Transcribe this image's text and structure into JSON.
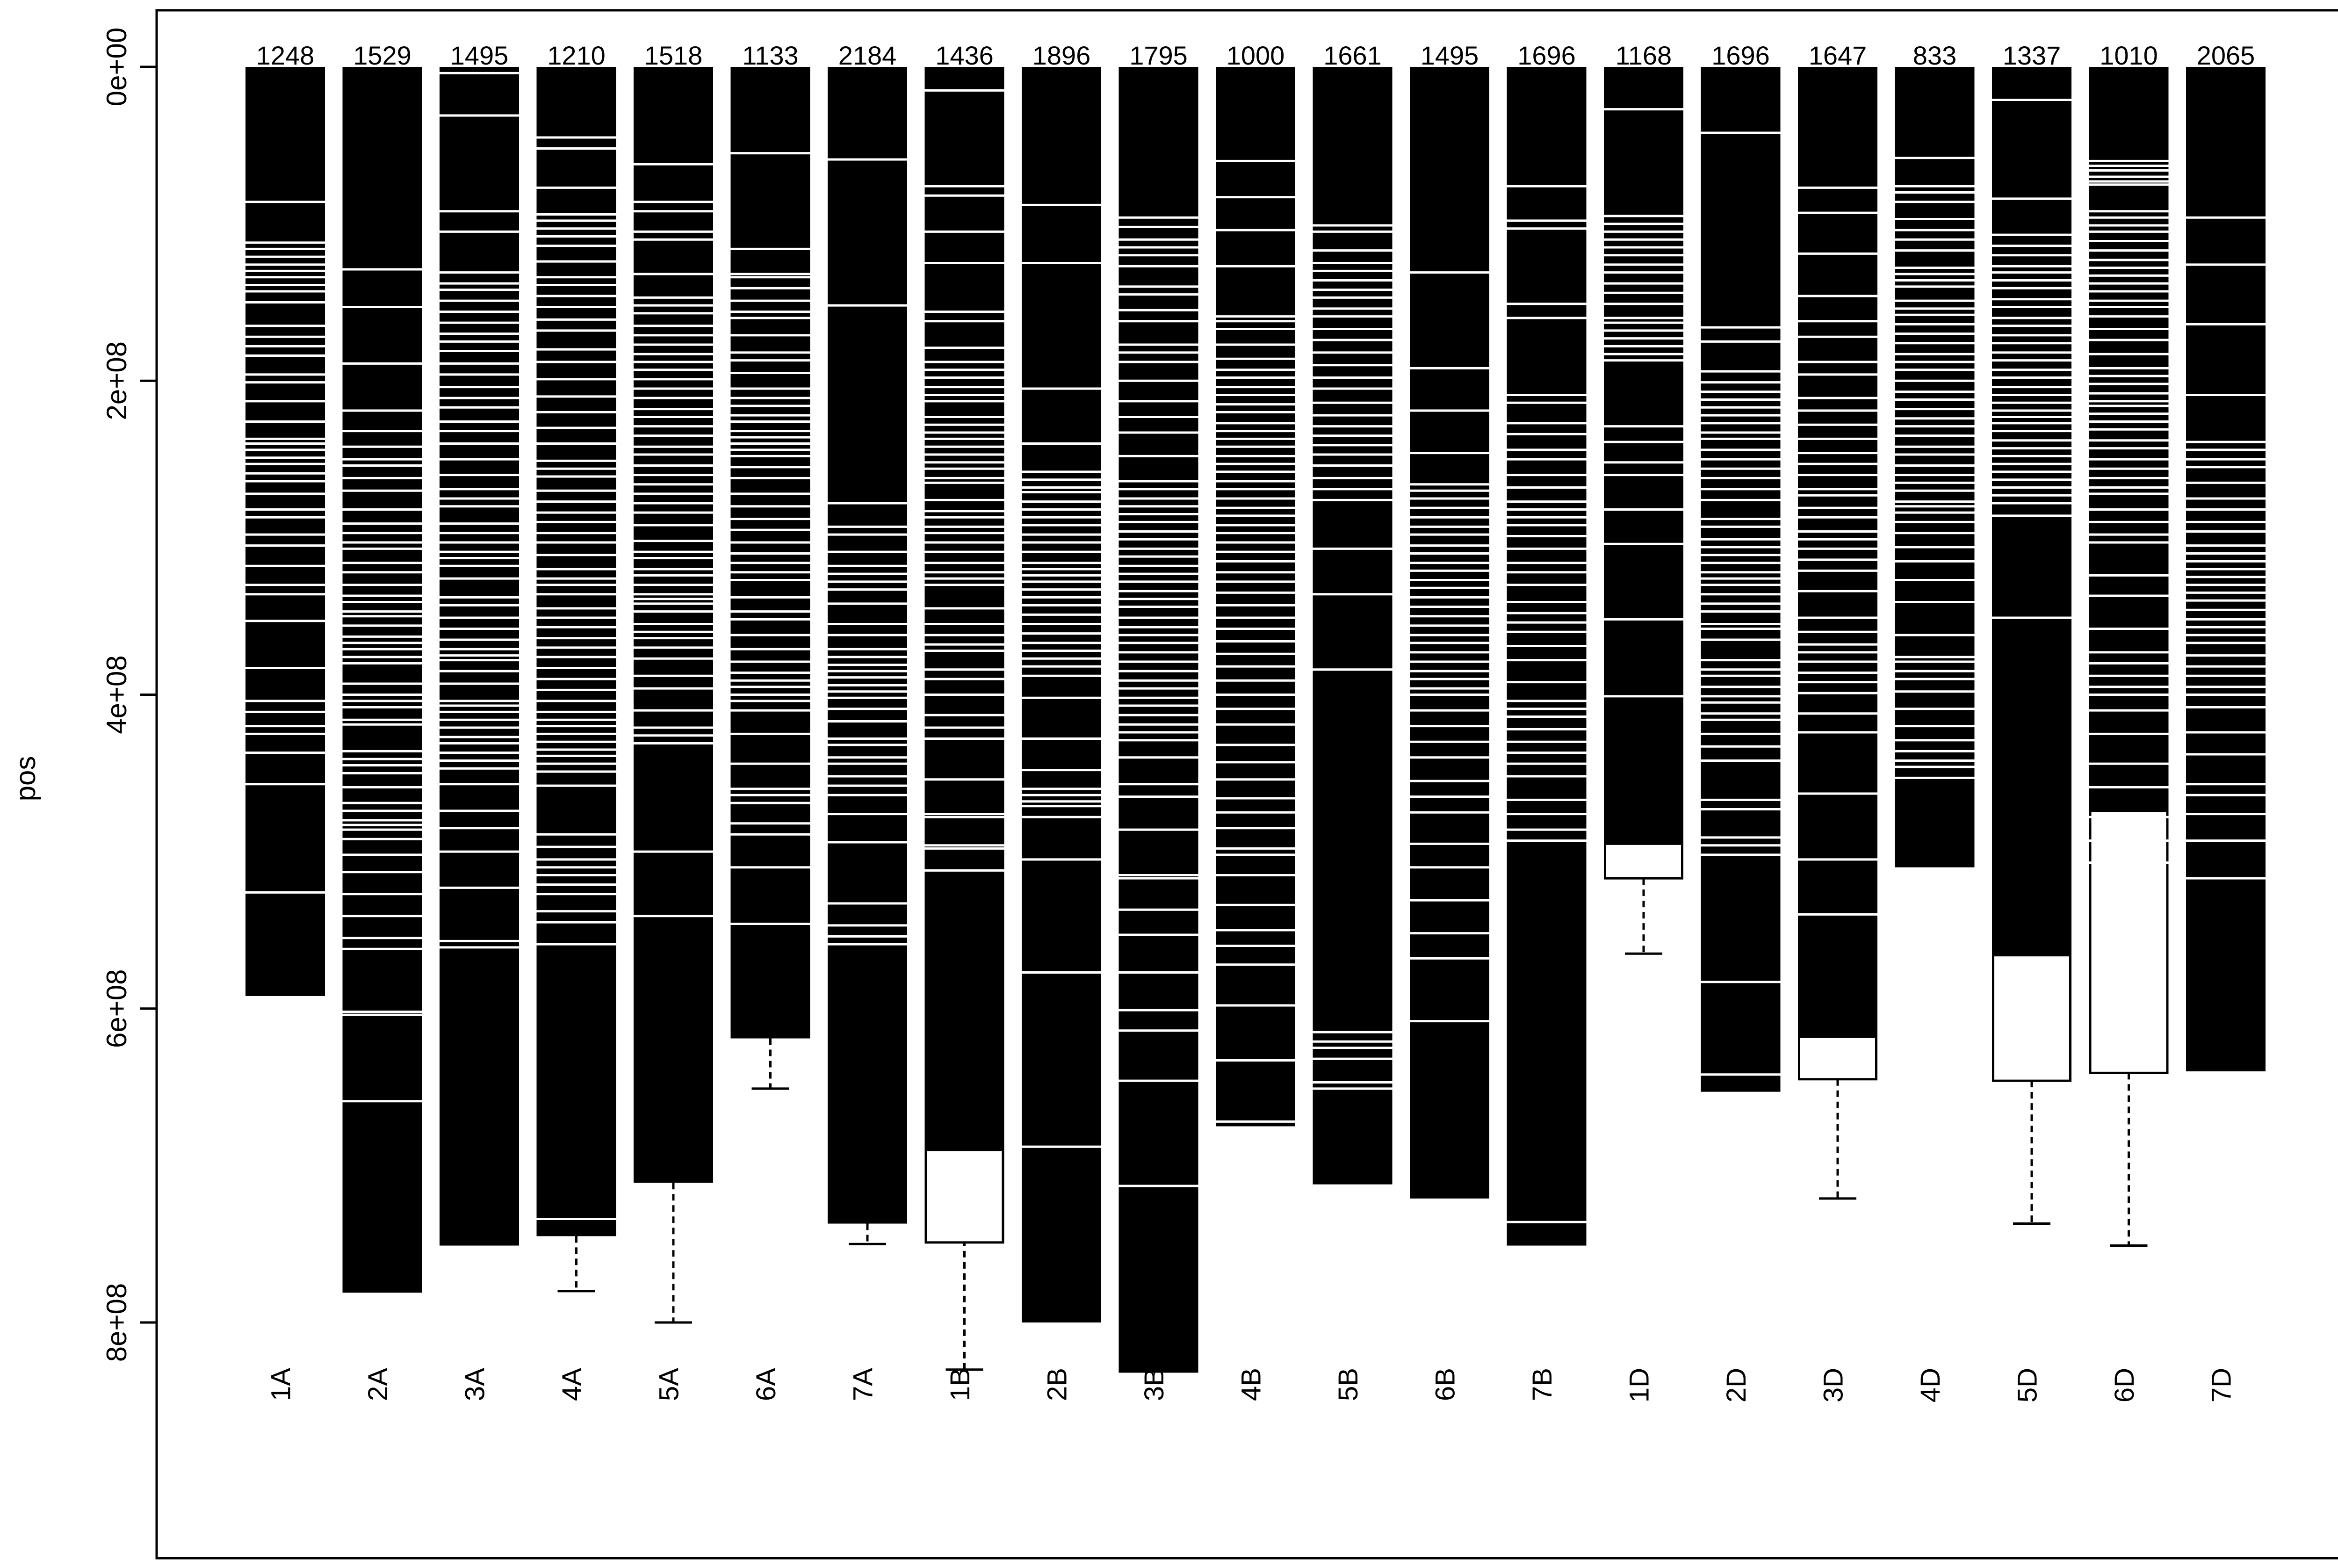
{
  "chart_data": {
    "type": "boxplot",
    "ylabel": "pos",
    "y_inverted": true,
    "ylim": [
      0,
      800000000
    ],
    "yticks": [
      {
        "value": 0,
        "label": "0e+00"
      },
      {
        "value": 200000000,
        "label": "2e+08"
      },
      {
        "value": 400000000,
        "label": "4e+08"
      },
      {
        "value": 600000000,
        "label": "6e+08"
      },
      {
        "value": 800000000,
        "label": "8e+08"
      }
    ],
    "colors": {
      "box_fill": "#000000",
      "marker": "#ffffff",
      "line": "#000000",
      "background": "#ffffff"
    },
    "categories": [
      {
        "label": "1A",
        "count": "1248",
        "box_end": 592000000,
        "whisker_end": 592000000,
        "white_tail": null,
        "markers": [
          86,
          112,
          116,
          121,
          126,
          130,
          134,
          139,
          143,
          150,
          165,
          172,
          178,
          184,
          196,
          201,
          213,
          226,
          237,
          240,
          244,
          249,
          253,
          259,
          264,
          272,
          282,
          287,
          298,
          305,
          318,
          330,
          336,
          353,
          383,
          404,
          411,
          420,
          425,
          437,
          457,
          526
        ]
      },
      {
        "label": "2A",
        "count": "1529",
        "box_end": 781000000,
        "whisker_end": 781000000,
        "white_tail": null,
        "markers": [
          129,
          153,
          189,
          219,
          232,
          242,
          250,
          254,
          262,
          270,
          282,
          291,
          297,
          303,
          307,
          316,
          322,
          330,
          337,
          341,
          347,
          350,
          356,
          363,
          367,
          371,
          376,
          380,
          393,
          400,
          404,
          408,
          416,
          419,
          436,
          441,
          445,
          450,
          459,
          469,
          474,
          480,
          483,
          486,
          492,
          502,
          513,
          527,
          541,
          555,
          562,
          602,
          604,
          659
        ]
      },
      {
        "label": "3A",
        "count": "1495",
        "box_end": 751000000,
        "whisker_end": 751000000,
        "white_tail": null,
        "markers": [
          4,
          31,
          92,
          105,
          131,
          138,
          142,
          149,
          156,
          163,
          170,
          175,
          181,
          189,
          196,
          204,
          211,
          217,
          226,
          232,
          240,
          250,
          260,
          269,
          275,
          280,
          291,
          297,
          303,
          309,
          313,
          318,
          326,
          338,
          343,
          351,
          358,
          365,
          371,
          375,
          378,
          385,
          393,
          404,
          407,
          411,
          416,
          421,
          427,
          431,
          437,
          442,
          447,
          457,
          474,
          485,
          500,
          523,
          557,
          561
        ]
      },
      {
        "label": "4A",
        "count": "1210",
        "box_end": 745000000,
        "whisker_end": 780000000,
        "white_tail": null,
        "markers": [
          45,
          52,
          77,
          94,
          98,
          103,
          108,
          114,
          124,
          134,
          139,
          146,
          153,
          161,
          168,
          180,
          188,
          199,
          210,
          220,
          230,
          240,
          251,
          256,
          261,
          270,
          277,
          284,
          290,
          297,
          303,
          311,
          320,
          326,
          330,
          336,
          345,
          351,
          357,
          364,
          370,
          376,
          383,
          390,
          397,
          404,
          411,
          416,
          420,
          425,
          430,
          435,
          439,
          444,
          449,
          458,
          489,
          497,
          505,
          510,
          515,
          521,
          527,
          538,
          545,
          559,
          734
        ]
      },
      {
        "label": "5A",
        "count": "1518",
        "box_end": 711000000,
        "whisker_end": 800000000,
        "white_tail": null,
        "markers": [
          62,
          86,
          92,
          105,
          110,
          132,
          147,
          152,
          157,
          165,
          171,
          177,
          183,
          188,
          193,
          199,
          205,
          211,
          218,
          223,
          229,
          235,
          242,
          247,
          254,
          260,
          266,
          272,
          278,
          284,
          292,
          302,
          309,
          313,
          320,
          324,
          330,
          336,
          339,
          342,
          347,
          355,
          360,
          364,
          370,
          377,
          388,
          396,
          410,
          421,
          426,
          431,
          500,
          541
        ]
      },
      {
        "label": "6A",
        "count": "1133",
        "box_end": 619000000,
        "whisker_end": 651000000,
        "white_tail": null,
        "markers": [
          55,
          116,
          132,
          134,
          141,
          149,
          156,
          160,
          171,
          182,
          187,
          195,
          205,
          211,
          216,
          222,
          226,
          232,
          236,
          240,
          244,
          248,
          255,
          262,
          272,
          280,
          288,
          295,
          303,
          310,
          316,
          322,
          327,
          338,
          347,
          352,
          362,
          371,
          379,
          386,
          391,
          395,
          400,
          404,
          410,
          425,
          444,
          460,
          464,
          469,
          482,
          489,
          510,
          546
        ]
      },
      {
        "label": "7A",
        "count": "2184",
        "box_end": 737000000,
        "whisker_end": 750000000,
        "white_tail": null,
        "markers": [
          59,
          152,
          278,
          293,
          298,
          309,
          318,
          323,
          328,
          333,
          342,
          355,
          362,
          371,
          376,
          381,
          385,
          389,
          394,
          398,
          402,
          409,
          417,
          428,
          432,
          440,
          444,
          452,
          458,
          464,
          476,
          494,
          533,
          547,
          554,
          559
        ]
      },
      {
        "label": "1B",
        "count": "1436",
        "box_end": 690000000,
        "whisker_end": 830000000,
        "white_tail": [
          690000000,
          749000000
        ],
        "markers": [
          15,
          76,
          82,
          105,
          125,
          156,
          162,
          179,
          188,
          193,
          198,
          204,
          209,
          213,
          223,
          228,
          233,
          237,
          242,
          247,
          252,
          256,
          262,
          265,
          276,
          283,
          287,
          293,
          297,
          303,
          309,
          316,
          322,
          326,
          330,
          345,
          355,
          362,
          368,
          372,
          384,
          390,
          400,
          413,
          421,
          428,
          454,
          476,
          478,
          496,
          498,
          512
        ]
      },
      {
        "label": "2B",
        "count": "1896",
        "box_end": 800000000,
        "whisker_end": 800000000,
        "white_tail": null,
        "markers": [
          88,
          125,
          205,
          240,
          258,
          263,
          268,
          271,
          277,
          282,
          287,
          292,
          298,
          303,
          309,
          316,
          320,
          324,
          328,
          333,
          338,
          343,
          349,
          355,
          361,
          367,
          372,
          377,
          382,
          388,
          402,
          428,
          448,
          460,
          464,
          468,
          471,
          478,
          505,
          577,
          688
        ]
      },
      {
        "label": "3B",
        "count": "1795",
        "box_end": 832000000,
        "whisker_end": 832000000,
        "white_tail": null,
        "markers": [
          96,
          102,
          110,
          115,
          120,
          127,
          140,
          145,
          155,
          162,
          177,
          182,
          188,
          200,
          213,
          223,
          233,
          248,
          264,
          269,
          275,
          280,
          285,
          290,
          296,
          301,
          307,
          312,
          318,
          323,
          328,
          334,
          339,
          344,
          351,
          357,
          362,
          367,
          373,
          379,
          385,
          391,
          396,
          402,
          407,
          413,
          419,
          424,
          429,
          440,
          457,
          465,
          486,
          515,
          517,
          537,
          553,
          577,
          601,
          614,
          646,
          713
        ]
      },
      {
        "label": "4B",
        "count": "1000",
        "box_end": 675000000,
        "whisker_end": 675000000,
        "white_tail": null,
        "markers": [
          60,
          83,
          104,
          127,
          159,
          162,
          167,
          177,
          186,
          193,
          198,
          204,
          209,
          215,
          220,
          227,
          232,
          237,
          242,
          248,
          253,
          258,
          264,
          269,
          275,
          281,
          286,
          292,
          297,
          303,
          309,
          315,
          322,
          328,
          335,
          343,
          351,
          358,
          366,
          374,
          382,
          391,
          400,
          409,
          419,
          432,
          443,
          454,
          466,
          475,
          485,
          498,
          502,
          515,
          534,
          550,
          560,
          572,
          598,
          633,
          672
        ]
      },
      {
        "label": "5B",
        "count": "1661",
        "box_end": 712000000,
        "whisker_end": 712000000,
        "white_tail": null,
        "markers": [
          101,
          105,
          117,
          125,
          130,
          136,
          142,
          147,
          154,
          159,
          167,
          174,
          182,
          190,
          198,
          205,
          214,
          222,
          229,
          235,
          241,
          247,
          254,
          262,
          269,
          276,
          307,
          336,
          384,
          615,
          621,
          625,
          632,
          647,
          651
        ]
      },
      {
        "label": "6B",
        "count": "1495",
        "box_end": 721000000,
        "whisker_end": 721000000,
        "white_tail": null,
        "markers": [
          131,
          192,
          219,
          246,
          266,
          270,
          275,
          281,
          287,
          293,
          298,
          305,
          310,
          316,
          321,
          327,
          332,
          338,
          344,
          350,
          356,
          362,
          367,
          373,
          379,
          385,
          390,
          396,
          400,
          410,
          420,
          430,
          440,
          455,
          465,
          475,
          495,
          510,
          531,
          552,
          568,
          608
        ]
      },
      {
        "label": "7B",
        "count": "1696",
        "box_end": 751000000,
        "whisker_end": 751000000,
        "white_tail": null,
        "markers": [
          76,
          98,
          103,
          151,
          160,
          209,
          214,
          227,
          234,
          244,
          250,
          260,
          268,
          277,
          282,
          287,
          292,
          299,
          307,
          316,
          322,
          330,
          341,
          348,
          354,
          360,
          369,
          378,
          392,
          404,
          409,
          414,
          422,
          430,
          437,
          444,
          452,
          467,
          476,
          486,
          493,
          736
        ]
      },
      {
        "label": "1D",
        "count": "1168",
        "box_end": 517000000,
        "whisker_end": 565000000,
        "white_tail": [
          495000000,
          517000000
        ],
        "markers": [
          27,
          95,
          100,
          105,
          110,
          115,
          120,
          126,
          131,
          138,
          144,
          151,
          160,
          163,
          168,
          173,
          178,
          183,
          187,
          229,
          239,
          252,
          260,
          282,
          304,
          352,
          401
        ]
      },
      {
        "label": "2D",
        "count": "1696",
        "box_end": 653000000,
        "whisker_end": 653000000,
        "white_tail": null,
        "markers": [
          42,
          166,
          175,
          194,
          201,
          207,
          212,
          217,
          222,
          227,
          233,
          237,
          244,
          250,
          256,
          262,
          269,
          276,
          288,
          293,
          301,
          306,
          311,
          316,
          322,
          326,
          330,
          336,
          342,
          347,
          355,
          358,
          365,
          378,
          384,
          388,
          395,
          401,
          405,
          412,
          416,
          425,
          433,
          442,
          467,
          473,
          491,
          496,
          502,
          583,
          642
        ]
      },
      {
        "label": "3D",
        "count": "1647",
        "box_end": 645000000,
        "whisker_end": 721000000,
        "white_tail": [
          618000000,
          645000000
        ],
        "markers": [
          77,
          93,
          119,
          146,
          162,
          172,
          188,
          196,
          211,
          219,
          228,
          237,
          246,
          253,
          260,
          269,
          273,
          281,
          287,
          296,
          301,
          307,
          314,
          321,
          334,
          351,
          360,
          368,
          373,
          379,
          386,
          392,
          399,
          412,
          424,
          463,
          505,
          540
        ]
      },
      {
        "label": "4D",
        "count": "833",
        "box_end": 510000000,
        "whisker_end": 510000000,
        "white_tail": null,
        "markers": [
          58,
          76,
          80,
          86,
          97,
          104,
          110,
          117,
          128,
          132,
          136,
          140,
          149,
          154,
          158,
          164,
          170,
          176,
          183,
          188,
          193,
          200,
          207,
          212,
          218,
          224,
          229,
          235,
          242,
          247,
          254,
          260,
          265,
          270,
          277,
          280,
          284,
          290,
          297,
          306,
          315,
          327,
          341,
          362,
          376,
          379,
          385,
          390,
          398,
          409,
          420,
          429,
          436,
          442,
          446,
          453
        ]
      },
      {
        "label": "5D",
        "count": "1337",
        "box_end": 646000000,
        "whisker_end": 737000000,
        "white_tail": [
          566000000,
          646000000
        ],
        "markers": [
          21,
          84,
          107,
          114,
          120,
          127,
          131,
          136,
          141,
          148,
          153,
          160,
          165,
          171,
          176,
          182,
          187,
          193,
          198,
          204,
          209,
          214,
          219,
          223,
          227,
          232,
          238,
          243,
          248,
          253,
          258,
          263,
          268,
          273,
          278,
          286,
          351
        ]
      },
      {
        "label": "6D",
        "count": "1010",
        "box_end": 641000000,
        "whisker_end": 751000000,
        "white_tail": [
          474000000,
          641000000
        ],
        "markers": [
          60,
          63,
          66,
          70,
          73,
          75,
          92,
          96,
          101,
          105,
          111,
          117,
          123,
          128,
          133,
          138,
          143,
          149,
          153,
          159,
          167,
          174,
          183,
          192,
          197,
          202,
          208,
          213,
          216,
          221,
          226,
          231,
          238,
          243,
          250,
          256,
          262,
          268,
          272,
          282,
          290,
          298,
          303,
          324,
          337,
          358,
          373,
          380,
          388,
          395,
          400,
          410,
          425,
          444,
          459,
          478,
          493,
          507
        ]
      },
      {
        "label": "7D",
        "count": "2065",
        "box_end": 640000000,
        "whisker_end": 640000000,
        "white_tail": null,
        "markers": [
          96,
          126,
          164,
          209,
          239,
          244,
          250,
          255,
          265,
          275,
          282,
          290,
          296,
          305,
          310,
          315,
          320,
          325,
          330,
          335,
          340,
          346,
          352,
          357,
          362,
          367,
          375,
          382,
          388,
          395,
          400,
          408,
          424,
          438,
          457,
          464,
          476,
          493,
          517
        ]
      }
    ]
  }
}
